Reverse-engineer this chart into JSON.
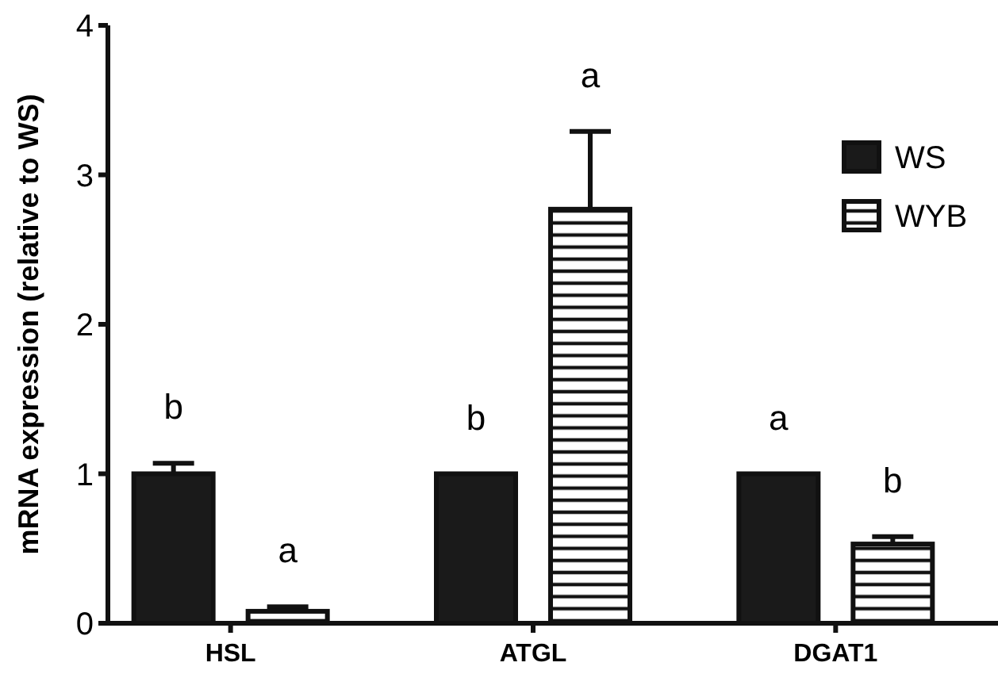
{
  "chart_data": {
    "type": "bar",
    "ylabel": "mRNA expression (relative to WS)",
    "categories": [
      "HSL",
      "ATGL",
      "DGAT1"
    ],
    "series": [
      {
        "name": "WS",
        "color": "#1a1a1a",
        "values": [
          1.0,
          1.0,
          1.0
        ],
        "errors": [
          0.07,
          null,
          null
        ]
      },
      {
        "name": "WYB",
        "color": "#111111",
        "values": [
          0.08,
          2.77,
          0.53
        ],
        "errors": [
          0.03,
          0.52,
          0.05
        ]
      }
    ],
    "ylim": [
      0,
      4
    ],
    "yticks": [
      0,
      1,
      2,
      3,
      4
    ],
    "legend": "top right",
    "grid": false,
    "annotations": [
      "b",
      "a",
      "b",
      "a",
      "a",
      "b"
    ]
  }
}
